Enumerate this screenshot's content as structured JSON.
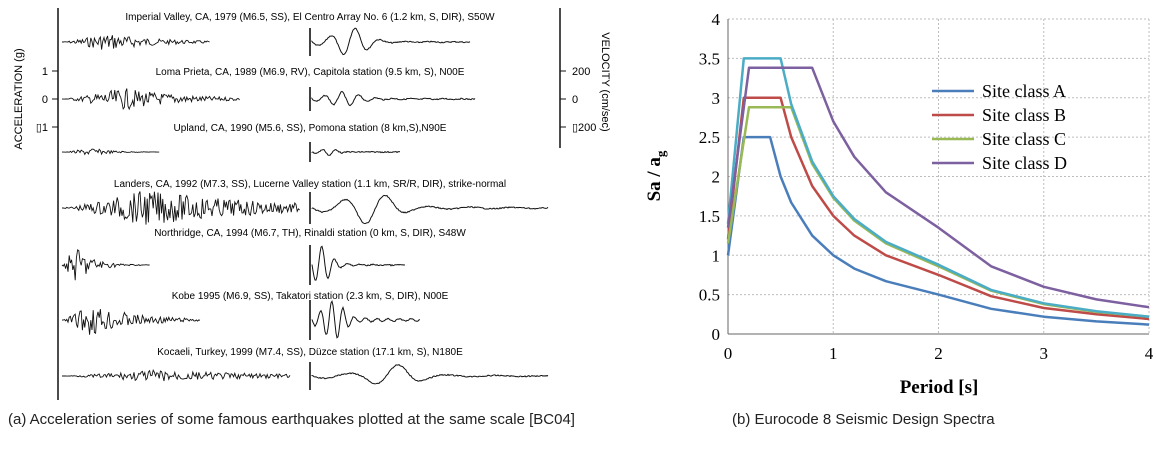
{
  "left": {
    "left_axis_label": "ACCELERATION (g)",
    "right_axis_label": "VELOCITY (cm/sec)",
    "left_ticks": [
      "1",
      "0",
      "▯1"
    ],
    "right_ticks": [
      "200",
      "0",
      "▯200"
    ],
    "records": [
      {
        "label": "Imperial Valley, CA, 1979 (M6.5, SS), El Centro Array No. 6 (1.2 km, S, DIR), S50W"
      },
      {
        "label": "Loma Prieta, CA, 1989 (M6.9, RV), Capitola station (9.5 km, S), N00E"
      },
      {
        "label": "Upland, CA, 1990 (M5.6, SS), Pomona station (8 km,S),N90E"
      },
      {
        "label": "Landers, CA, 1992 (M7.3, SS), Lucerne Valley station (1.1 km, SR/R, DIR), strike-normal"
      },
      {
        "label": "Northridge, CA, 1994 (M6.7, TH), Rinaldi station (0 km, S, DIR), S48W"
      },
      {
        "label": "Kobe 1995 (M6.9, SS), Takatori station (2.3 km, S, DIR), N00E"
      },
      {
        "label": "Kocaeli, Turkey, 1999 (M7.4, SS), Düzce station (17.1 km, S), N180E"
      }
    ],
    "caption": "(a) Acceleration series of some famous earthquakes plotted at the same scale [BC04]"
  },
  "chart_data": {
    "type": "line",
    "xlabel": "Period [s]",
    "ylabel": "Sa / a",
    "ylabel_sub": "g",
    "xlim": [
      0,
      4
    ],
    "ylim": [
      0,
      4
    ],
    "xticks": [
      "0",
      "1",
      "2",
      "3",
      "4"
    ],
    "yticks": [
      "0",
      "0.5",
      "1",
      "1.5",
      "2",
      "2.5",
      "3",
      "3.5",
      "4"
    ],
    "grid": true,
    "legend_position": "top-right",
    "series": [
      {
        "name": "Site class A",
        "color": "#4a7ebb",
        "x": [
          0,
          0.15,
          0.4,
          0.5,
          0.6,
          0.8,
          1.0,
          1.2,
          1.5,
          2.0,
          2.5,
          3.0,
          3.5,
          4.0
        ],
        "y": [
          1.0,
          2.5,
          2.5,
          2.0,
          1.67,
          1.25,
          1.0,
          0.83,
          0.67,
          0.5,
          0.32,
          0.22,
          0.16,
          0.12
        ]
      },
      {
        "name": "Site class B",
        "color": "#be4b48",
        "x": [
          0,
          0.15,
          0.5,
          0.6,
          0.8,
          1.0,
          1.2,
          1.5,
          2.0,
          2.5,
          3.0,
          3.5,
          4.0
        ],
        "y": [
          1.2,
          3.0,
          3.0,
          2.5,
          1.88,
          1.5,
          1.25,
          1.0,
          0.75,
          0.48,
          0.33,
          0.25,
          0.19
        ]
      },
      {
        "name": "Site class C",
        "color": "#98b954",
        "x": [
          0,
          0.2,
          0.6,
          0.8,
          1.0,
          1.2,
          1.5,
          2.0,
          2.5,
          3.0,
          3.5,
          4.0
        ],
        "y": [
          1.15,
          2.88,
          2.88,
          2.16,
          1.73,
          1.44,
          1.15,
          0.86,
          0.55,
          0.38,
          0.28,
          0.22
        ]
      },
      {
        "name": "",
        "color": "#4bacc6",
        "x": [
          0,
          0.15,
          0.5,
          0.6,
          0.8,
          1.0,
          1.2,
          1.5,
          2.0,
          2.5,
          3.0,
          3.5,
          4.0
        ],
        "y": [
          1.4,
          3.5,
          3.5,
          2.92,
          2.19,
          1.75,
          1.46,
          1.17,
          0.88,
          0.56,
          0.39,
          0.29,
          0.22
        ]
      },
      {
        "name": "Site class D",
        "color": "#7d60a0",
        "x": [
          0,
          0.2,
          0.8,
          1.0,
          1.2,
          1.5,
          2.0,
          2.5,
          3.0,
          3.5,
          4.0
        ],
        "y": [
          1.35,
          3.38,
          3.38,
          2.7,
          2.25,
          1.8,
          1.35,
          0.86,
          0.6,
          0.44,
          0.34
        ]
      }
    ],
    "caption": "(b) Eurocode 8 Seismic Design Spectra"
  }
}
